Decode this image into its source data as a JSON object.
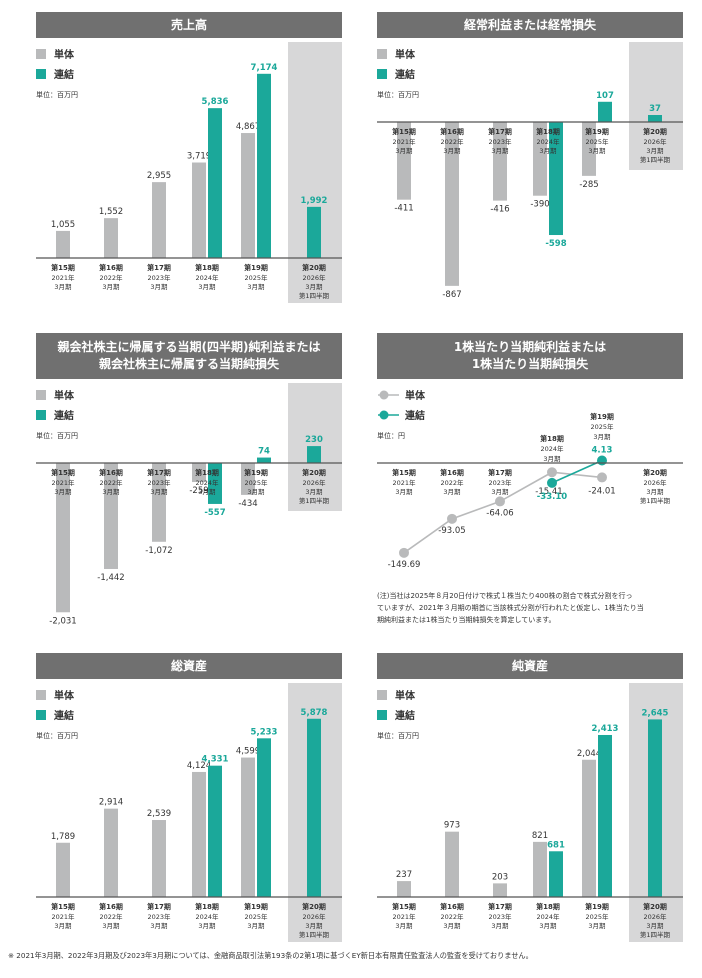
{
  "colors": {
    "single": "#b9babb",
    "consolidated": "#1ba89a",
    "header": "#707070",
    "quarter_band": "#d7d7d8",
    "axis": "#555555"
  },
  "legend": {
    "single": "単体",
    "consolidated": "連結"
  },
  "units": {
    "million": "単位：百万円",
    "yen": "単位：円"
  },
  "periods": [
    {
      "name": "第15期",
      "date": [
        "2021年",
        "3月期"
      ]
    },
    {
      "name": "第16期",
      "date": [
        "2022年",
        "3月期"
      ]
    },
    {
      "name": "第17期",
      "date": [
        "2023年",
        "3月期"
      ]
    },
    {
      "name": "第18期",
      "date": [
        "2024年",
        "3月期"
      ]
    },
    {
      "name": "第19期",
      "date": [
        "2025年",
        "3月期"
      ]
    },
    {
      "name": "第20期",
      "date": [
        "2026年",
        "3月期",
        "第1四半期"
      ]
    }
  ],
  "chart_data": [
    {
      "id": "sales",
      "type": "bar",
      "title": [
        "売上高"
      ],
      "unit": "million",
      "series": [
        {
          "name": "単体",
          "values": [
            1055,
            1552,
            2955,
            3719,
            4867,
            null
          ],
          "labels": [
            "1,055",
            "1,552",
            "2,955",
            "3,719",
            "4,867",
            ""
          ]
        },
        {
          "name": "連結",
          "values": [
            null,
            null,
            null,
            5836,
            7174,
            1992
          ],
          "labels": [
            "",
            "",
            "",
            "5,836",
            "7,174",
            "1,992"
          ]
        }
      ]
    },
    {
      "id": "ordinary",
      "type": "bar",
      "title": [
        "経常利益または経常損失"
      ],
      "unit": "million",
      "series": [
        {
          "name": "単体",
          "values": [
            -411,
            -867,
            -416,
            -390,
            -285,
            null
          ],
          "labels": [
            "-411",
            "-867",
            "-416",
            "-390",
            "-285",
            ""
          ]
        },
        {
          "name": "連結",
          "values": [
            null,
            null,
            null,
            -598,
            107,
            37
          ],
          "labels": [
            "",
            "",
            "",
            "-598",
            "107",
            "37"
          ]
        }
      ]
    },
    {
      "id": "netincome",
      "type": "bar",
      "title": [
        "親会社株主に帰属する当期(四半期)純利益または",
        "親会社株主に帰属する当期純損失"
      ],
      "unit": "million",
      "series": [
        {
          "name": "単体",
          "values": [
            -2031,
            -1442,
            -1072,
            -259,
            -434,
            null
          ],
          "labels": [
            "-2,031",
            "-1,442",
            "-1,072",
            "-259",
            "-434",
            ""
          ]
        },
        {
          "name": "連結",
          "values": [
            null,
            null,
            null,
            -557,
            74,
            230
          ],
          "labels": [
            "",
            "",
            "",
            "-557",
            "74",
            "230"
          ]
        }
      ]
    },
    {
      "id": "eps",
      "type": "line",
      "title": [
        "1株当たり当期純利益または",
        "1株当たり当期純損失"
      ],
      "unit": "yen",
      "series": [
        {
          "name": "単体",
          "values": [
            -149.69,
            -93.05,
            -64.06,
            -15.41,
            -24.01
          ],
          "labels": [
            "-149.69",
            "-93.05",
            "-64.06",
            "-15.41",
            "-24.01"
          ]
        },
        {
          "name": "連結",
          "values": [
            null,
            null,
            null,
            -33.1,
            4.13
          ],
          "labels": [
            "",
            "",
            "",
            "-33.10",
            "4.13"
          ]
        }
      ]
    },
    {
      "id": "assets",
      "type": "bar",
      "title": [
        "総資産"
      ],
      "unit": "million",
      "series": [
        {
          "name": "単体",
          "values": [
            1789,
            2914,
            2539,
            4124,
            4599,
            null
          ],
          "labels": [
            "1,789",
            "2,914",
            "2,539",
            "4,124",
            "4,599",
            ""
          ]
        },
        {
          "name": "連結",
          "values": [
            null,
            null,
            null,
            4331,
            5233,
            5878
          ],
          "labels": [
            "",
            "",
            "",
            "4,331",
            "5,233",
            "5,878"
          ]
        }
      ]
    },
    {
      "id": "netassets",
      "type": "bar",
      "title": [
        "純資産"
      ],
      "unit": "million",
      "series": [
        {
          "name": "単体",
          "values": [
            237,
            973,
            203,
            821,
            2044,
            null
          ],
          "labels": [
            "237",
            "973",
            "203",
            "821",
            "2,044",
            ""
          ]
        },
        {
          "name": "連結",
          "values": [
            null,
            null,
            null,
            681,
            2413,
            2645
          ],
          "labels": [
            "",
            "",
            "",
            "681",
            "2,413",
            "2,645"
          ]
        }
      ]
    }
  ],
  "eps_note": [
    "(注)当社は2025年８月20日付けで株式１株当たり400株の割合で株式分割を行っ",
    "ていますが、2021年３月期の期首に当該株式分割が行われたと仮定し、1株当たり当",
    "期純利益または1株当たり当期純損失を算定しています。"
  ],
  "footnote": "※ 2021年3月期、2022年3月期及び2023年3月期については、金融商品取引法第193条の2第1項に基づくEY新日本有限責任監査法人の監査を受けておりません。"
}
